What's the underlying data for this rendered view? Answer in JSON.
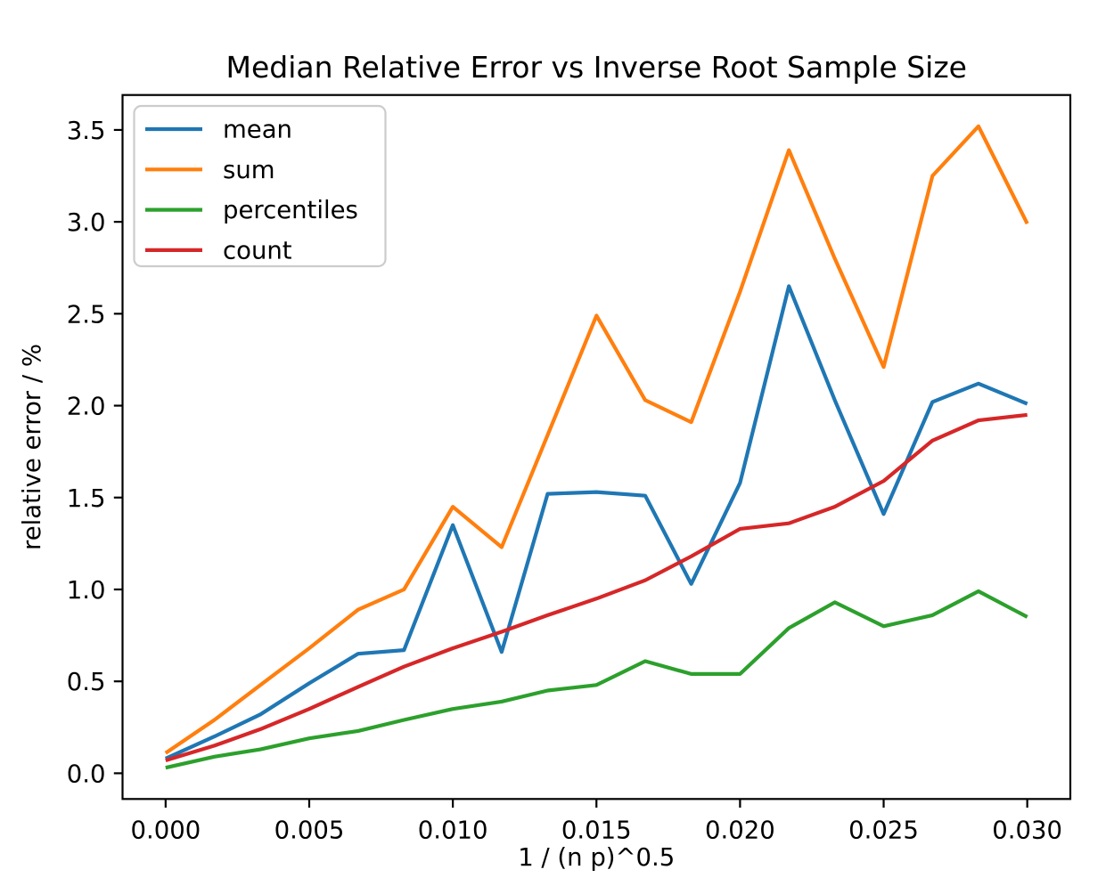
{
  "chart_data": {
    "type": "line",
    "title": "Median Relative Error vs Inverse Root Sample Size",
    "xlabel": "1 / (n p)^0.5",
    "ylabel": "relative error / %",
    "grid": false,
    "legend_position": "upper left",
    "axis_color": "#000000",
    "legend_border_color": "#cccccc",
    "xlim": [
      -0.0015,
      0.0315
    ],
    "ylim": [
      -0.14,
      3.69
    ],
    "xtick_labels": [
      "0.000",
      "0.005",
      "0.010",
      "0.015",
      "0.020",
      "0.025",
      "0.030"
    ],
    "xtick_values": [
      0.0,
      0.005,
      0.01,
      0.015,
      0.02,
      0.025,
      0.03
    ],
    "ytick_labels": [
      "0.0",
      "0.5",
      "1.0",
      "1.5",
      "2.0",
      "2.5",
      "3.0",
      "3.5"
    ],
    "ytick_values": [
      0.0,
      0.5,
      1.0,
      1.5,
      2.0,
      2.5,
      3.0,
      3.5
    ],
    "x": [
      0.0,
      0.0017,
      0.0033,
      0.005,
      0.0067,
      0.0083,
      0.01,
      0.0117,
      0.0133,
      0.015,
      0.0167,
      0.0183,
      0.02,
      0.0217,
      0.0233,
      0.025,
      0.0267,
      0.0283,
      0.03
    ],
    "series": [
      {
        "name": "mean",
        "color": "#1f77b4",
        "values": [
          0.08,
          0.2,
          0.32,
          0.49,
          0.65,
          0.67,
          1.35,
          0.66,
          1.52,
          1.53,
          1.51,
          1.03,
          1.58,
          2.65,
          2.03,
          1.41,
          2.02,
          2.12,
          2.01
        ]
      },
      {
        "name": "sum",
        "color": "#ff7f0e",
        "values": [
          0.11,
          0.29,
          0.48,
          0.68,
          0.89,
          1.0,
          1.45,
          1.23,
          1.84,
          2.49,
          2.03,
          1.91,
          2.62,
          3.39,
          2.8,
          2.21,
          3.25,
          3.52,
          2.99
        ]
      },
      {
        "name": "percentiles",
        "color": "#2ca02c",
        "values": [
          0.03,
          0.09,
          0.13,
          0.19,
          0.23,
          0.29,
          0.35,
          0.39,
          0.45,
          0.48,
          0.61,
          0.54,
          0.54,
          0.79,
          0.93,
          0.8,
          0.86,
          0.99,
          0.85
        ]
      },
      {
        "name": "count",
        "color": "#d62728",
        "values": [
          0.07,
          0.15,
          0.24,
          0.35,
          0.47,
          0.58,
          0.68,
          0.77,
          0.86,
          0.95,
          1.05,
          1.18,
          1.33,
          1.36,
          1.45,
          1.59,
          1.81,
          1.92,
          1.95
        ]
      }
    ]
  }
}
